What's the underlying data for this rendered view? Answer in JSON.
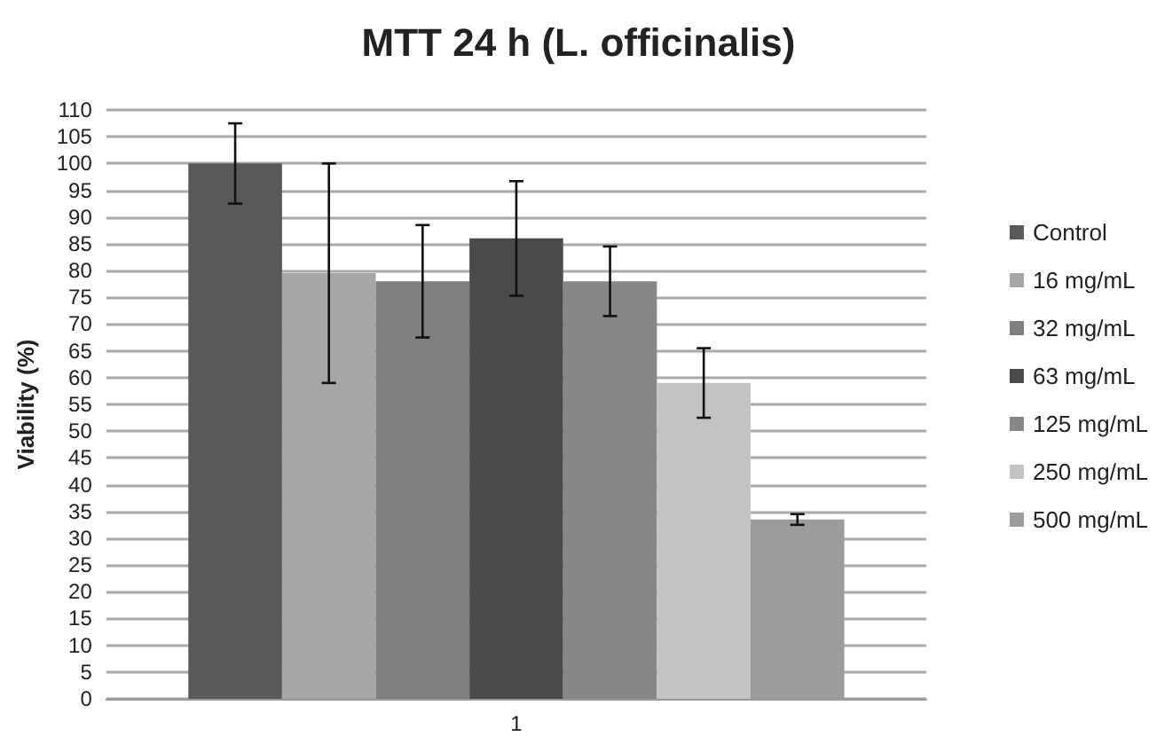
{
  "chart_data": {
    "type": "bar",
    "title": "MTT 24 h (L. officinalis)",
    "ylabel": "Viability (%)",
    "categories": [
      "1"
    ],
    "series": [
      {
        "name": "Control",
        "color": "#595959",
        "values": [
          100
        ],
        "errors": [
          7.5
        ]
      },
      {
        "name": "16 mg/mL",
        "color": "#a6a6a6",
        "values": [
          79.5
        ],
        "errors": [
          20.5
        ]
      },
      {
        "name": "32 mg/mL",
        "color": "#7f7f7f",
        "values": [
          78
        ],
        "errors": [
          10.5
        ]
      },
      {
        "name": "63 mg/mL",
        "color": "#4a4a4a",
        "values": [
          86
        ],
        "errors": [
          10.7
        ]
      },
      {
        "name": "125 mg/mL",
        "color": "#878787",
        "values": [
          78
        ],
        "errors": [
          6.5
        ]
      },
      {
        "name": "250 mg/mL",
        "color": "#c3c3c3",
        "values": [
          59
        ],
        "errors": [
          6.5
        ]
      },
      {
        "name": "500 mg/mL",
        "color": "#9c9c9c",
        "values": [
          33.5
        ],
        "errors": [
          1
        ]
      }
    ],
    "ylim": [
      0,
      110
    ],
    "yticks": [
      0,
      5,
      10,
      15,
      20,
      25,
      30,
      35,
      40,
      45,
      50,
      55,
      60,
      65,
      70,
      75,
      80,
      85,
      90,
      95,
      100,
      105,
      110
    ],
    "grid": "y",
    "legend": "right"
  }
}
